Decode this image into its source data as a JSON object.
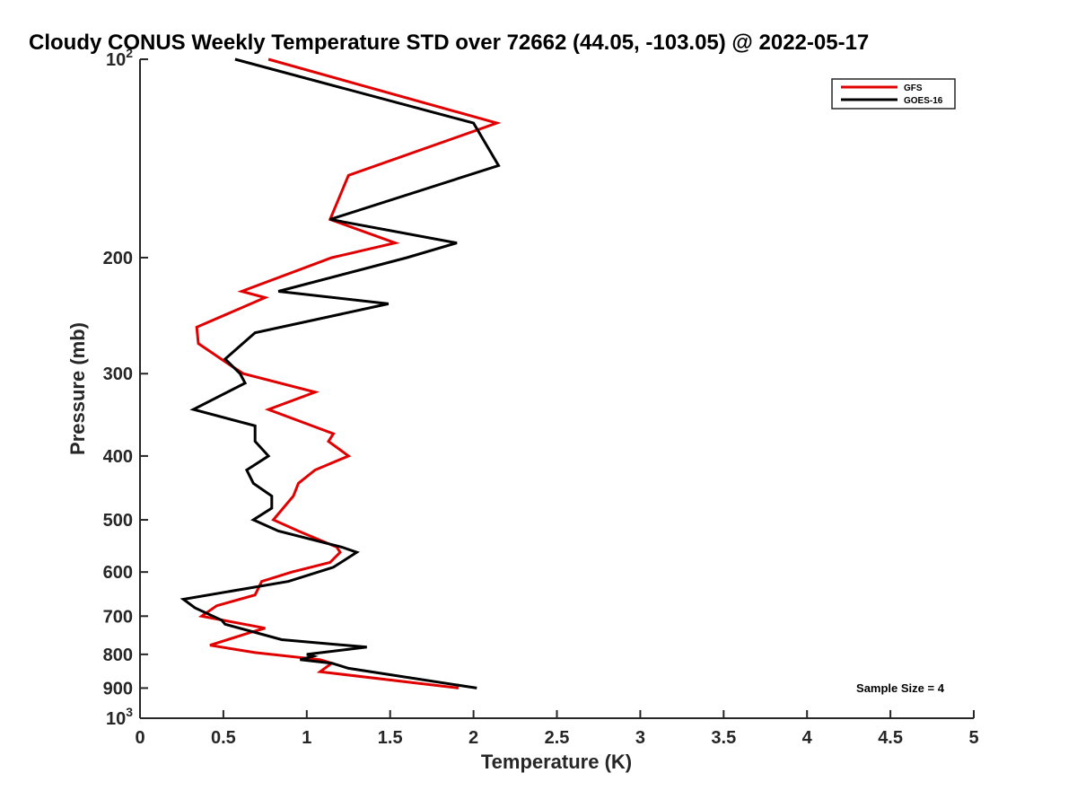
{
  "chart_data": {
    "type": "line",
    "title": "Cloudy CONUS Weekly Temperature STD over 72662 (44.05, -103.05) @ 2022-05-17",
    "xlabel": "Temperature (K)",
    "ylabel": "Pressure (mb)",
    "xlim": [
      0,
      5
    ],
    "ylim": [
      100,
      1000
    ],
    "y_scale": "log",
    "y_reversed": true,
    "grid": false,
    "legend_position": "top-right",
    "x_ticks": [
      {
        "value": 0,
        "label": "0"
      },
      {
        "value": 0.5,
        "label": "0.5"
      },
      {
        "value": 1,
        "label": "1"
      },
      {
        "value": 1.5,
        "label": "1.5"
      },
      {
        "value": 2,
        "label": "2"
      },
      {
        "value": 2.5,
        "label": "2.5"
      },
      {
        "value": 3,
        "label": "3"
      },
      {
        "value": 3.5,
        "label": "3.5"
      },
      {
        "value": 4,
        "label": "4"
      },
      {
        "value": 4.5,
        "label": "4.5"
      },
      {
        "value": 5,
        "label": "5"
      }
    ],
    "y_ticks": [
      {
        "value": 100,
        "base": "10",
        "exp": "2"
      },
      {
        "value": 200,
        "label": "200"
      },
      {
        "value": 300,
        "label": "300"
      },
      {
        "value": 400,
        "label": "400"
      },
      {
        "value": 500,
        "label": "500"
      },
      {
        "value": 600,
        "label": "600"
      },
      {
        "value": 700,
        "label": "700"
      },
      {
        "value": 800,
        "label": "800"
      },
      {
        "value": 900,
        "label": "900"
      },
      {
        "value": 1000,
        "base": "10",
        "exp": "3"
      }
    ],
    "series": [
      {
        "name": "GFS",
        "color": "#e00000",
        "points": [
          [
            0.77,
            100
          ],
          [
            2.14,
            125
          ],
          [
            1.25,
            150
          ],
          [
            1.14,
            175
          ],
          [
            1.53,
            190
          ],
          [
            1.15,
            200
          ],
          [
            0.61,
            225
          ],
          [
            0.75,
            230
          ],
          [
            0.34,
            255
          ],
          [
            0.35,
            270
          ],
          [
            0.53,
            290
          ],
          [
            0.62,
            300
          ],
          [
            1.05,
            320
          ],
          [
            0.77,
            340
          ],
          [
            1.16,
            370
          ],
          [
            1.13,
            380
          ],
          [
            1.25,
            400
          ],
          [
            1.05,
            420
          ],
          [
            0.95,
            440
          ],
          [
            0.92,
            460
          ],
          [
            0.8,
            500
          ],
          [
            0.95,
            520
          ],
          [
            1.18,
            550
          ],
          [
            1.2,
            560
          ],
          [
            1.14,
            580
          ],
          [
            0.91,
            600
          ],
          [
            0.73,
            620
          ],
          [
            0.69,
            650
          ],
          [
            0.46,
            675
          ],
          [
            0.37,
            700
          ],
          [
            0.75,
            730
          ],
          [
            0.67,
            740
          ],
          [
            0.42,
            775
          ],
          [
            0.69,
            795
          ],
          [
            1.08,
            815
          ],
          [
            1.15,
            825
          ],
          [
            1.08,
            850
          ],
          [
            1.91,
            900
          ]
        ]
      },
      {
        "name": "GOES-16",
        "color": "#000000",
        "points": [
          [
            0.57,
            100
          ],
          [
            2.0,
            125
          ],
          [
            2.15,
            145
          ],
          [
            1.14,
            175
          ],
          [
            1.9,
            190
          ],
          [
            1.6,
            200
          ],
          [
            0.83,
            225
          ],
          [
            1.49,
            235
          ],
          [
            0.69,
            260
          ],
          [
            0.51,
            285
          ],
          [
            0.6,
            300
          ],
          [
            0.63,
            310
          ],
          [
            0.32,
            340
          ],
          [
            0.69,
            360
          ],
          [
            0.69,
            380
          ],
          [
            0.77,
            400
          ],
          [
            0.64,
            420
          ],
          [
            0.68,
            440
          ],
          [
            0.79,
            460
          ],
          [
            0.79,
            480
          ],
          [
            0.68,
            500
          ],
          [
            0.83,
            520
          ],
          [
            1.21,
            550
          ],
          [
            1.3,
            560
          ],
          [
            1.16,
            590
          ],
          [
            0.89,
            620
          ],
          [
            0.26,
            660
          ],
          [
            0.33,
            680
          ],
          [
            0.49,
            710
          ],
          [
            0.51,
            720
          ],
          [
            0.85,
            760
          ],
          [
            1.36,
            780
          ],
          [
            1.0,
            800
          ],
          [
            1.04,
            805
          ],
          [
            0.96,
            815
          ],
          [
            1.15,
            825
          ],
          [
            1.25,
            840
          ],
          [
            2.02,
            900
          ]
        ]
      }
    ],
    "annotations": [
      "Sample Size = 4"
    ]
  }
}
